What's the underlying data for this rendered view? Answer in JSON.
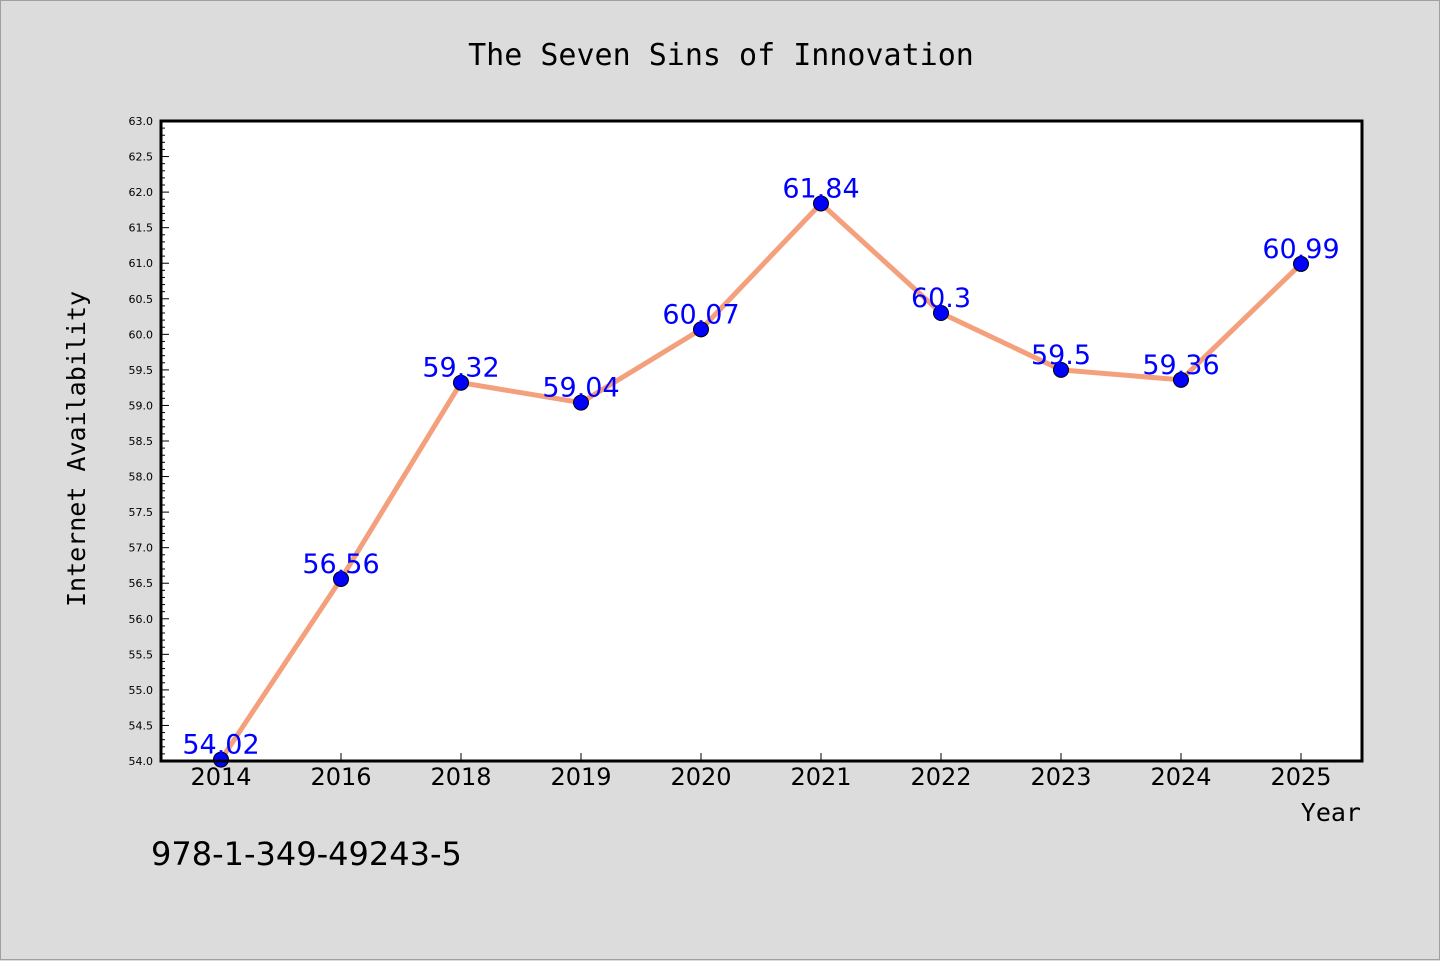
{
  "chart_data": {
    "type": "line",
    "title": "The Seven Sins of Innovation",
    "xlabel": "Year",
    "ylabel": "Internet Availability",
    "categories": [
      "2014",
      "2016",
      "2018",
      "2019",
      "2020",
      "2021",
      "2022",
      "2023",
      "2024",
      "2025"
    ],
    "series": [
      {
        "values": [
          54.02,
          56.56,
          59.32,
          59.04,
          60.07,
          61.84,
          60.3,
          59.5,
          59.36,
          60.99
        ],
        "data_labels": [
          "54.02",
          "56.56",
          "59.32",
          "59.04",
          "60.07",
          "61.84",
          "60.3",
          "59.5",
          "59.36",
          "60.99"
        ],
        "line_color": "#f4a07c",
        "marker_color": "#0000ff"
      }
    ],
    "ylim": [
      54.0,
      63.0
    ],
    "ytick_step": 0.5,
    "yminor_step": 0.1,
    "grid": false,
    "legend": "none"
  },
  "footnote": "978-1-349-49243-5"
}
